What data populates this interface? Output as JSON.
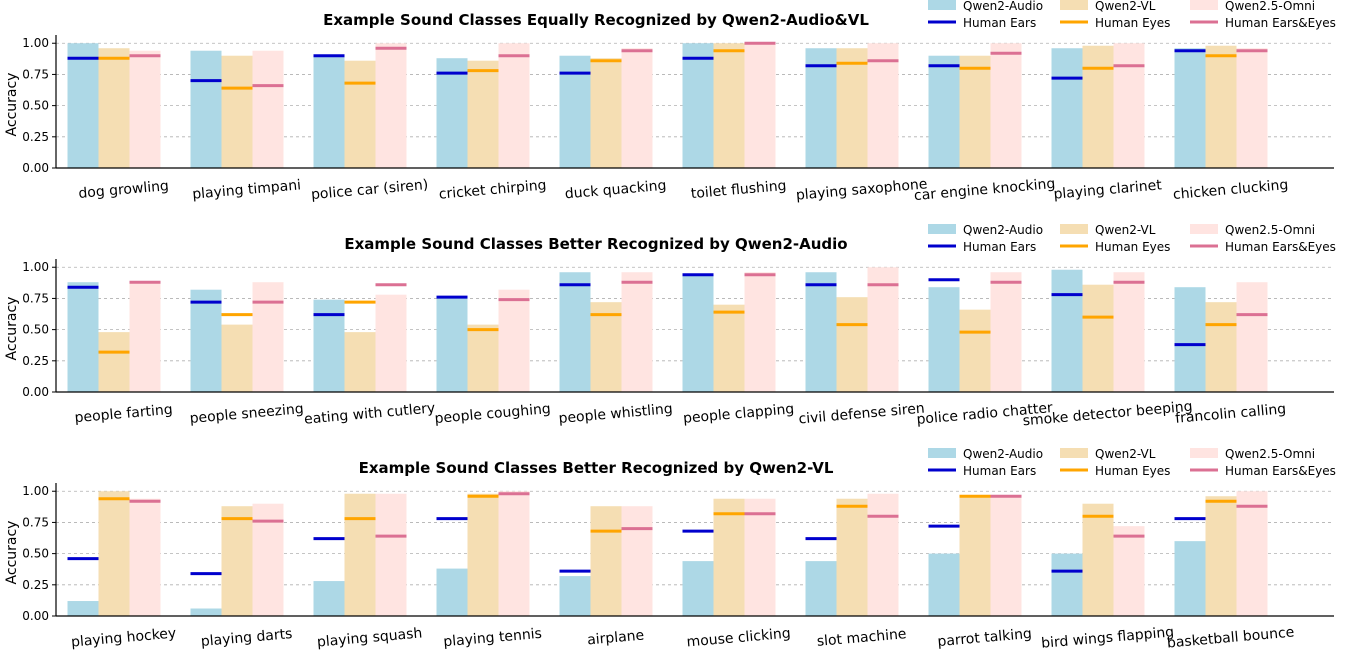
{
  "chart_data": [
    {
      "type": "bar",
      "title": "Example Sound Classes Equally Recognized by Qwen2-Audio&VL",
      "ylabel": "Accuracy",
      "ylim": [
        0,
        1.05
      ],
      "yticks": [
        "0.00",
        "0.25",
        "0.50",
        "0.75",
        "1.00"
      ],
      "grid": "y-dashed",
      "categories": [
        "dog growling",
        "playing timpani",
        "police car (siren)",
        "cricket chirping",
        "duck quacking",
        "toilet flushing",
        "playing saxophone",
        "car engine knocking",
        "playing clarinet",
        "chicken clucking"
      ],
      "bar_series": [
        {
          "name": "Qwen2-Audio",
          "color": "#add8e6",
          "values": [
            1.0,
            0.94,
            0.9,
            0.88,
            0.9,
            1.0,
            0.96,
            0.9,
            0.96,
            0.96
          ]
        },
        {
          "name": "Qwen2-VL",
          "color": "#f5deb3",
          "values": [
            0.96,
            0.9,
            0.86,
            0.86,
            0.88,
            1.0,
            0.96,
            0.9,
            0.98,
            0.98
          ]
        },
        {
          "name": "Qwen2.5-Omni",
          "color": "#ffe4e1",
          "values": [
            0.94,
            0.94,
            1.0,
            1.0,
            0.96,
            1.0,
            1.0,
            1.0,
            1.0,
            0.96
          ]
        }
      ],
      "line_series": [
        {
          "name": "Human Ears",
          "color": "#0000cd",
          "values": [
            0.88,
            0.7,
            0.9,
            0.76,
            0.76,
            0.88,
            0.82,
            0.82,
            0.72,
            0.94
          ]
        },
        {
          "name": "Human Eyes",
          "color": "#ffa500",
          "values": [
            0.88,
            0.64,
            0.68,
            0.78,
            0.86,
            0.94,
            0.84,
            0.8,
            0.8,
            0.9
          ]
        },
        {
          "name": "Human Ears&Eyes",
          "color": "#db7093",
          "values": [
            0.9,
            0.66,
            0.96,
            0.9,
            0.94,
            1.0,
            0.86,
            0.92,
            0.82,
            0.94
          ]
        }
      ],
      "legend": "top-right"
    },
    {
      "type": "bar",
      "title": "Example Sound Classes Better Recognized by Qwen2-Audio",
      "ylabel": "Accuracy",
      "ylim": [
        0,
        1.05
      ],
      "yticks": [
        "0.00",
        "0.25",
        "0.50",
        "0.75",
        "1.00"
      ],
      "grid": "y-dashed",
      "categories": [
        "people farting",
        "people sneezing",
        "eating with cutlery",
        "people coughing",
        "people whistling",
        "people clapping",
        "civil defense siren",
        "police radio chatter",
        "smoke detector beeping",
        "francolin calling"
      ],
      "bar_series": [
        {
          "name": "Qwen2-Audio",
          "color": "#add8e6",
          "values": [
            0.88,
            0.82,
            0.74,
            0.76,
            0.96,
            0.94,
            0.96,
            0.84,
            0.98,
            0.84
          ]
        },
        {
          "name": "Qwen2-VL",
          "color": "#f5deb3",
          "values": [
            0.48,
            0.54,
            0.48,
            0.54,
            0.72,
            0.7,
            0.76,
            0.66,
            0.86,
            0.72
          ]
        },
        {
          "name": "Qwen2.5-Omni",
          "color": "#ffe4e1",
          "values": [
            0.88,
            0.88,
            0.78,
            0.82,
            0.96,
            0.96,
            1.0,
            0.96,
            0.96,
            0.88
          ]
        }
      ],
      "line_series": [
        {
          "name": "Human Ears",
          "color": "#0000cd",
          "values": [
            0.84,
            0.72,
            0.62,
            0.76,
            0.86,
            0.94,
            0.86,
            0.9,
            0.78,
            0.38
          ]
        },
        {
          "name": "Human Eyes",
          "color": "#ffa500",
          "values": [
            0.32,
            0.62,
            0.72,
            0.5,
            0.62,
            0.64,
            0.54,
            0.48,
            0.6,
            0.54
          ]
        },
        {
          "name": "Human Ears&Eyes",
          "color": "#db7093",
          "values": [
            0.88,
            0.72,
            0.86,
            0.74,
            0.88,
            0.94,
            0.86,
            0.88,
            0.88,
            0.62
          ]
        }
      ],
      "legend": "top-right"
    },
    {
      "type": "bar",
      "title": "Example Sound Classes Better Recognized by Qwen2-VL",
      "ylabel": "Accuracy",
      "ylim": [
        0,
        1.05
      ],
      "yticks": [
        "0.00",
        "0.25",
        "0.50",
        "0.75",
        "1.00"
      ],
      "grid": "y-dashed",
      "categories": [
        "playing hockey",
        "playing darts",
        "playing squash",
        "playing tennis",
        "airplane",
        "mouse clicking",
        "slot machine",
        "parrot talking",
        "bird wings flapping",
        "basketball bounce"
      ],
      "bar_series": [
        {
          "name": "Qwen2-Audio",
          "color": "#add8e6",
          "values": [
            0.12,
            0.06,
            0.28,
            0.38,
            0.32,
            0.44,
            0.44,
            0.5,
            0.5,
            0.6
          ]
        },
        {
          "name": "Qwen2-VL",
          "color": "#f5deb3",
          "values": [
            1.0,
            0.88,
            0.98,
            0.98,
            0.88,
            0.94,
            0.94,
            0.96,
            0.9,
            0.96
          ]
        },
        {
          "name": "Qwen2.5-Omni",
          "color": "#ffe4e1",
          "values": [
            0.94,
            0.9,
            0.98,
            1.0,
            0.88,
            0.94,
            0.98,
            0.96,
            0.72,
            1.0
          ]
        }
      ],
      "line_series": [
        {
          "name": "Human Ears",
          "color": "#0000cd",
          "values": [
            0.46,
            0.34,
            0.62,
            0.78,
            0.36,
            0.68,
            0.62,
            0.72,
            0.36,
            0.78
          ]
        },
        {
          "name": "Human Eyes",
          "color": "#ffa500",
          "values": [
            0.94,
            0.78,
            0.78,
            0.96,
            0.68,
            0.82,
            0.88,
            0.96,
            0.8,
            0.92
          ]
        },
        {
          "name": "Human Ears&Eyes",
          "color": "#db7093",
          "values": [
            0.92,
            0.76,
            0.64,
            0.98,
            0.7,
            0.82,
            0.8,
            0.96,
            0.64,
            0.88
          ]
        }
      ],
      "legend": "top-right"
    }
  ]
}
